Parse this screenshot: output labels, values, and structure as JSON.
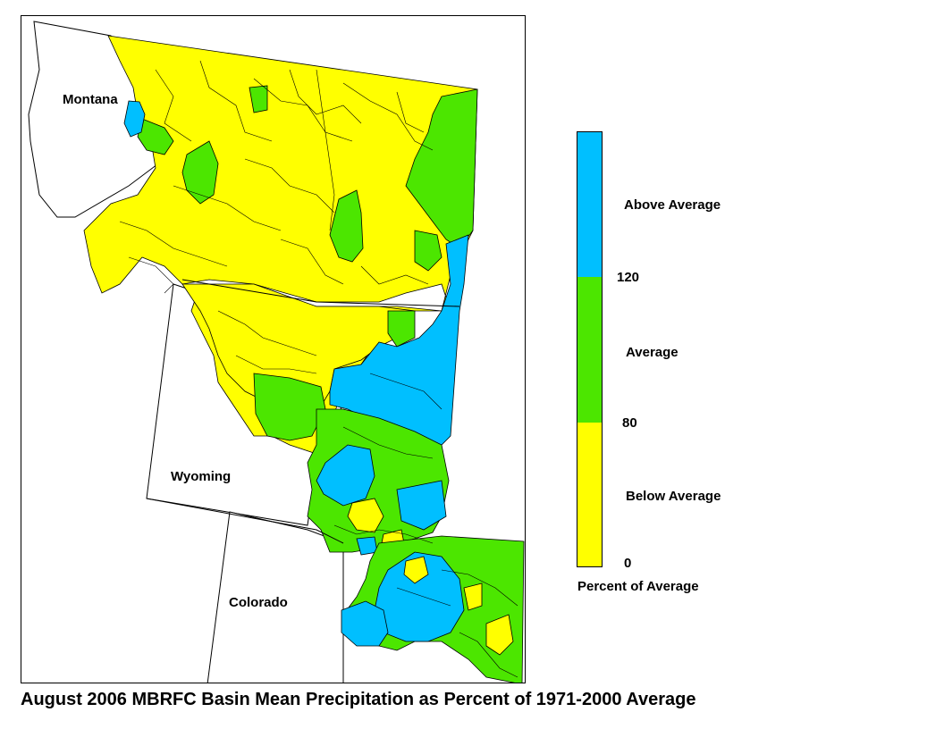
{
  "map": {
    "states": {
      "montana": "Montana",
      "wyoming": "Wyoming",
      "colorado": "Colorado"
    },
    "colors": {
      "above": "#00BFFF",
      "average": "#4CE600",
      "below": "#FFFF00",
      "outline": "#000000"
    }
  },
  "legend": {
    "above_label": "Above Average",
    "average_label": "Average",
    "below_label": "Below Average",
    "tick_120": "120",
    "tick_80": "80",
    "tick_0": "0",
    "caption": "Percent of Average"
  },
  "title": "August 2006 MBRFC Basin Mean Precipitation as Percent of 1971-2000 Average"
}
